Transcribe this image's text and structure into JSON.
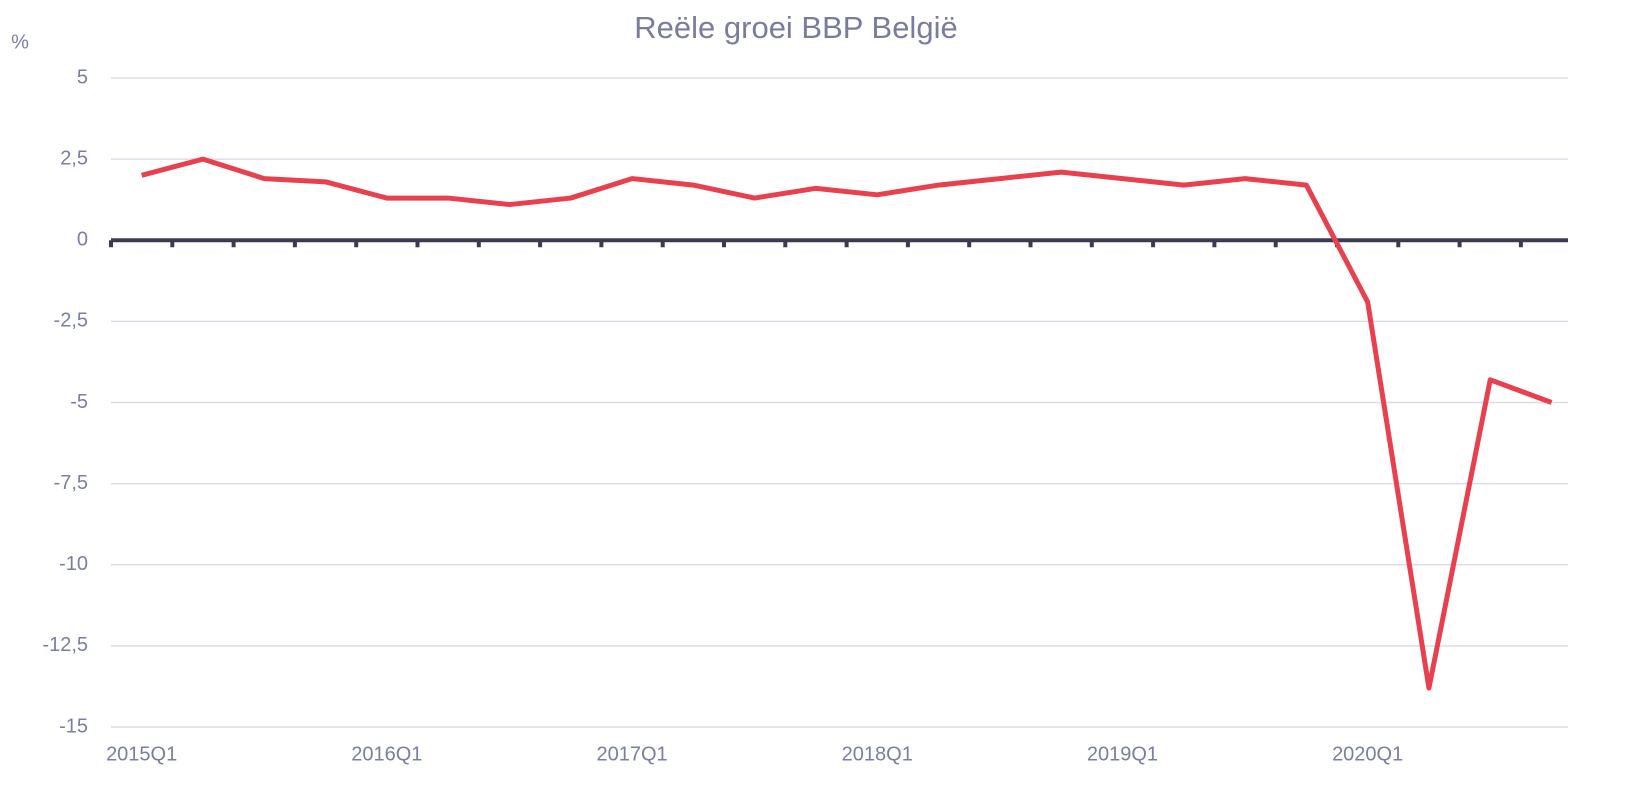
{
  "chart_data": {
    "type": "line",
    "title": "Reële groei BBP België",
    "y_label": "%",
    "categories": [
      "2015Q1",
      null,
      null,
      null,
      "2016Q1",
      null,
      null,
      null,
      "2017Q1",
      null,
      null,
      null,
      "2018Q1",
      null,
      null,
      null,
      "2019Q1",
      null,
      null,
      null,
      "2020Q1",
      null,
      null,
      null
    ],
    "series": [
      {
        "name": "Reële groei BBP België",
        "color": "#e8404f",
        "values": [
          2.0,
          2.5,
          1.9,
          1.8,
          1.3,
          1.3,
          1.1,
          1.3,
          1.9,
          1.7,
          1.3,
          1.6,
          1.4,
          1.7,
          1.9,
          2.1,
          1.9,
          1.7,
          1.9,
          1.7,
          -1.9,
          -13.8,
          -4.3,
          -5.0
        ]
      }
    ],
    "ylim": [
      -15,
      5
    ],
    "yticks": [
      5,
      {
        "value": 2.5,
        "label": "2,5"
      },
      0,
      {
        "value": -2.5,
        "label": "-2,5"
      },
      -5,
      {
        "value": -7.5,
        "label": "-7,5"
      },
      -10,
      {
        "value": -12.5,
        "label": "-12,5"
      },
      -15
    ],
    "grid": true
  }
}
